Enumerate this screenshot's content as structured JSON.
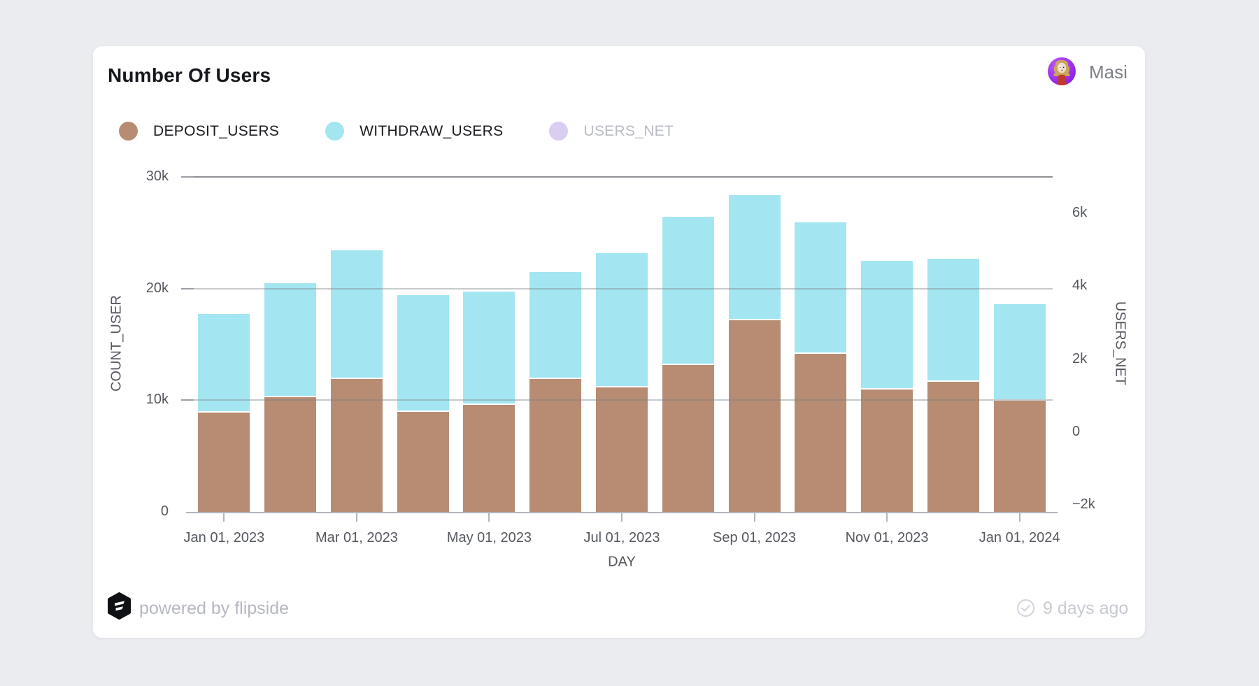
{
  "card": {
    "title": "Number Of Users",
    "user": {
      "name": "Masi"
    },
    "footer": {
      "powered_by": "powered by flipside",
      "updated": "9 days ago"
    }
  },
  "legend": {
    "items": [
      {
        "label": "DEPOSIT_USERS",
        "color": "#b78c72",
        "active": true
      },
      {
        "label": "WITHDRAW_USERS",
        "color": "#a3e6f1",
        "active": true
      },
      {
        "label": "USERS_NET",
        "color": "#d9cdf1",
        "active": false
      }
    ]
  },
  "chart_data": {
    "type": "bar",
    "stacked": true,
    "title": "Number Of Users",
    "xlabel": "DAY",
    "ylabel_left": "COUNT_USER",
    "ylabel_right": "USERS_NET",
    "x": [
      "2023-01-01",
      "2023-02-01",
      "2023-03-01",
      "2023-04-01",
      "2023-05-01",
      "2023-06-01",
      "2023-07-01",
      "2023-08-01",
      "2023-09-01",
      "2023-10-01",
      "2023-11-01",
      "2023-12-01",
      "2024-01-01"
    ],
    "x_tick_labels": [
      "Jan 01, 2023",
      "Mar 01, 2023",
      "May 01, 2023",
      "Jul 01, 2023",
      "Sep 01, 2023",
      "Nov 01, 2023",
      "Jan 01, 2024"
    ],
    "series": [
      {
        "name": "DEPOSIT_USERS",
        "color": "#b78c72",
        "hidden": false,
        "values": [
          9000,
          10400,
          12000,
          9100,
          9700,
          12000,
          11300,
          13300,
          17300,
          14300,
          11100,
          11800,
          10100
        ]
      },
      {
        "name": "WITHDRAW_USERS",
        "color": "#a3e6f1",
        "hidden": false,
        "values": [
          8700,
          10100,
          11400,
          10300,
          10000,
          9500,
          11900,
          13100,
          11100,
          11600,
          11400,
          10900,
          8500
        ]
      },
      {
        "name": "USERS_NET",
        "color": "#d9cdf1",
        "hidden": true,
        "values": []
      }
    ],
    "stack_totals": [
      17700,
      20500,
      23400,
      19400,
      19700,
      21500,
      23200,
      26400,
      28400,
      25900,
      22500,
      22700,
      18600
    ],
    "y_left": {
      "min": 0,
      "max": 30000,
      "ticks": [
        "0",
        "10k",
        "20k",
        "30k"
      ],
      "grid": true
    },
    "y_right": {
      "ticks": [
        "6k",
        "4k",
        "2k",
        "0",
        "−2k"
      ]
    },
    "legend_position": "top-left"
  }
}
